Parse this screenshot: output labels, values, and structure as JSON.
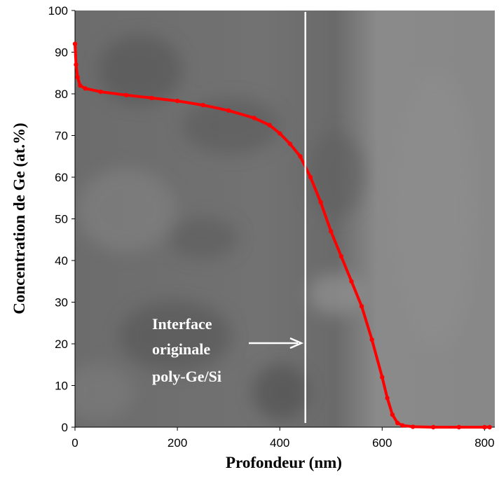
{
  "chart_data": {
    "type": "scatter",
    "x_label": "Profondeur (nm)",
    "y_label": "Concentration de Ge (at.%)",
    "annotation": [
      "Interface",
      "originale",
      "poly-Ge/Si"
    ],
    "reference_line_x": 450,
    "color": "#ff0000",
    "x": [
      0,
      2,
      5,
      10,
      20,
      50,
      100,
      150,
      200,
      250,
      300,
      350,
      380,
      400,
      420,
      440,
      460,
      480,
      500,
      520,
      540,
      560,
      580,
      600,
      610,
      620,
      630,
      640,
      660,
      700,
      750,
      800,
      810
    ],
    "values": [
      92,
      87,
      84,
      82,
      81.3,
      80.5,
      79.7,
      79,
      78.3,
      77.3,
      76,
      74.2,
      72.5,
      70.5,
      68,
      65,
      60,
      54,
      47,
      41,
      35,
      29,
      21,
      12,
      7,
      3,
      1,
      0.4,
      0.1,
      0,
      0,
      0,
      0
    ],
    "xlim": [
      0,
      820
    ],
    "ylim": [
      0,
      100
    ],
    "xticks": [
      0,
      200,
      400,
      600,
      800
    ],
    "yticks": [
      0,
      10,
      20,
      30,
      40,
      50,
      60,
      70,
      80,
      90,
      100
    ]
  }
}
